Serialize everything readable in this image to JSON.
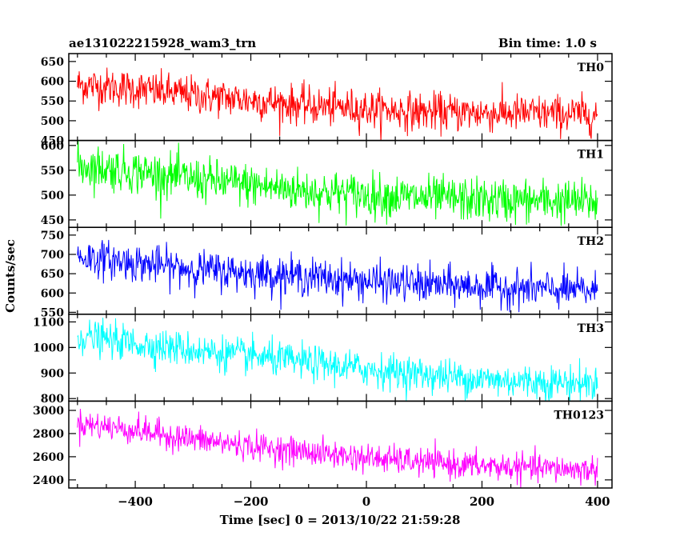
{
  "chart_data": {
    "type": "line",
    "title_left": "ae131022215928_wam3_trn",
    "title_right": "Bin time: 1.0 s",
    "xlabel": "Time [sec] 0 = 2013/10/22 21:59:28",
    "ylabel": "Counts/sec",
    "xlim": [
      -515,
      425
    ],
    "xticks": [
      -400,
      -200,
      0,
      200,
      400
    ],
    "x_start": -500,
    "x_end": 400,
    "bin_time": 1.0,
    "panels": [
      {
        "name": "TH0",
        "color": "#ff0000",
        "ylim": [
          450,
          670
        ],
        "yticks": [
          450,
          500,
          550,
          600,
          650
        ],
        "trend": [
          [
            -500,
            592
          ],
          [
            -400,
            580
          ],
          [
            -300,
            565
          ],
          [
            -200,
            552
          ],
          [
            -100,
            538
          ],
          [
            0,
            530
          ],
          [
            100,
            522
          ],
          [
            200,
            520
          ],
          [
            300,
            518
          ],
          [
            400,
            515
          ]
        ],
        "noise_sd": 24
      },
      {
        "name": "TH1",
        "color": "#00ff00",
        "ylim": [
          435,
          610
        ],
        "yticks": [
          450,
          500,
          550,
          600
        ],
        "trend": [
          [
            -500,
            560
          ],
          [
            -400,
            548
          ],
          [
            -300,
            532
          ],
          [
            -200,
            520
          ],
          [
            -100,
            508
          ],
          [
            0,
            500
          ],
          [
            100,
            494
          ],
          [
            200,
            490
          ],
          [
            300,
            488
          ],
          [
            400,
            486
          ]
        ],
        "noise_sd": 22
      },
      {
        "name": "TH2",
        "color": "#0000ff",
        "ylim": [
          545,
          770
        ],
        "yticks": [
          550,
          600,
          650,
          700,
          750
        ],
        "trend": [
          [
            -500,
            695
          ],
          [
            -400,
            678
          ],
          [
            -300,
            662
          ],
          [
            -200,
            652
          ],
          [
            -100,
            642
          ],
          [
            0,
            630
          ],
          [
            100,
            622
          ],
          [
            200,
            616
          ],
          [
            300,
            610
          ],
          [
            400,
            605
          ]
        ],
        "noise_sd": 24
      },
      {
        "name": "TH3",
        "color": "#00ffff",
        "ylim": [
          790,
          1130
        ],
        "yticks": [
          800,
          900,
          1000,
          1100
        ],
        "trend": [
          [
            -500,
            1045
          ],
          [
            -400,
            1015
          ],
          [
            -300,
            990
          ],
          [
            -200,
            965
          ],
          [
            -100,
            940
          ],
          [
            0,
            915
          ],
          [
            100,
            895
          ],
          [
            200,
            875
          ],
          [
            300,
            865
          ],
          [
            400,
            860
          ]
        ],
        "noise_sd": 34
      },
      {
        "name": "TH0123",
        "color": "#ff00ff",
        "ylim": [
          2330,
          3080
        ],
        "yticks": [
          2400,
          2600,
          2800,
          3000
        ],
        "trend": [
          [
            -500,
            2890
          ],
          [
            -400,
            2830
          ],
          [
            -300,
            2750
          ],
          [
            -200,
            2690
          ],
          [
            -100,
            2640
          ],
          [
            0,
            2590
          ],
          [
            100,
            2550
          ],
          [
            200,
            2520
          ],
          [
            300,
            2500
          ],
          [
            400,
            2485
          ]
        ],
        "noise_sd": 60
      }
    ]
  }
}
